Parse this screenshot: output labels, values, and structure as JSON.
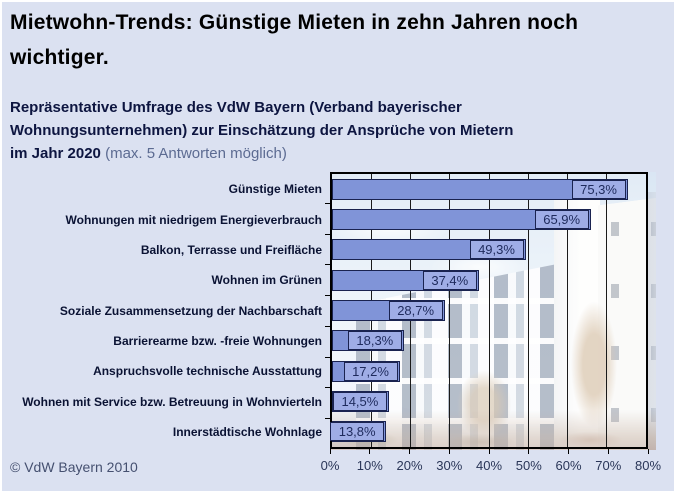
{
  "header": {
    "title": "Mietwohn-Trends: Günstige Mieten in zehn Jahren noch wichtiger."
  },
  "subtitle": {
    "line1": "Repräsentative Umfrage des VdW Bayern (Verband bayerischer",
    "line2": "Wohnungsunternehmen) zur Einschätzung der Ansprüche von Mietern",
    "line3_bold": "im Jahr 2020",
    "line3_note": "(max. 5 Antworten möglich)"
  },
  "footer": {
    "copyright": "© VdW Bayern 2010"
  },
  "colors": {
    "background": "#dbe1f1",
    "bar_fill": "#8094d8",
    "bar_border": "#1a2350",
    "value_box_fill": "#9fade6",
    "text_navy": "#0d1540"
  },
  "chart_data": {
    "type": "bar",
    "orientation": "horizontal",
    "title": "Mietwohn-Trends: Günstige Mieten in zehn Jahren noch wichtiger.",
    "categories": [
      "Günstige Mieten",
      "Wohnungen mit niedrigem Energieverbrauch",
      "Balkon, Terrasse und Freifläche",
      "Wohnen im Grünen",
      "Soziale Zusammensetzung der Nachbarschaft",
      "Barrierearme bzw. -freie Wohnungen",
      "Anspruchsvolle technische Ausstattung",
      "Wohnen mit Service bzw. Betreuung in Wohnvierteln",
      "Innerstädtische Wohnlage"
    ],
    "values": [
      75.3,
      65.9,
      49.3,
      37.4,
      28.7,
      18.3,
      17.2,
      14.5,
      13.8
    ],
    "value_labels": [
      "75,3%",
      "65,9%",
      "49,3%",
      "37,4%",
      "28,7%",
      "18,3%",
      "17,2%",
      "14,5%",
      "13,8%"
    ],
    "xlim": [
      0,
      80
    ],
    "x_ticks": [
      "0%",
      "10%",
      "20%",
      "30%",
      "40%",
      "50%",
      "60%",
      "70%",
      "80%"
    ],
    "grid": true,
    "legend": false
  }
}
